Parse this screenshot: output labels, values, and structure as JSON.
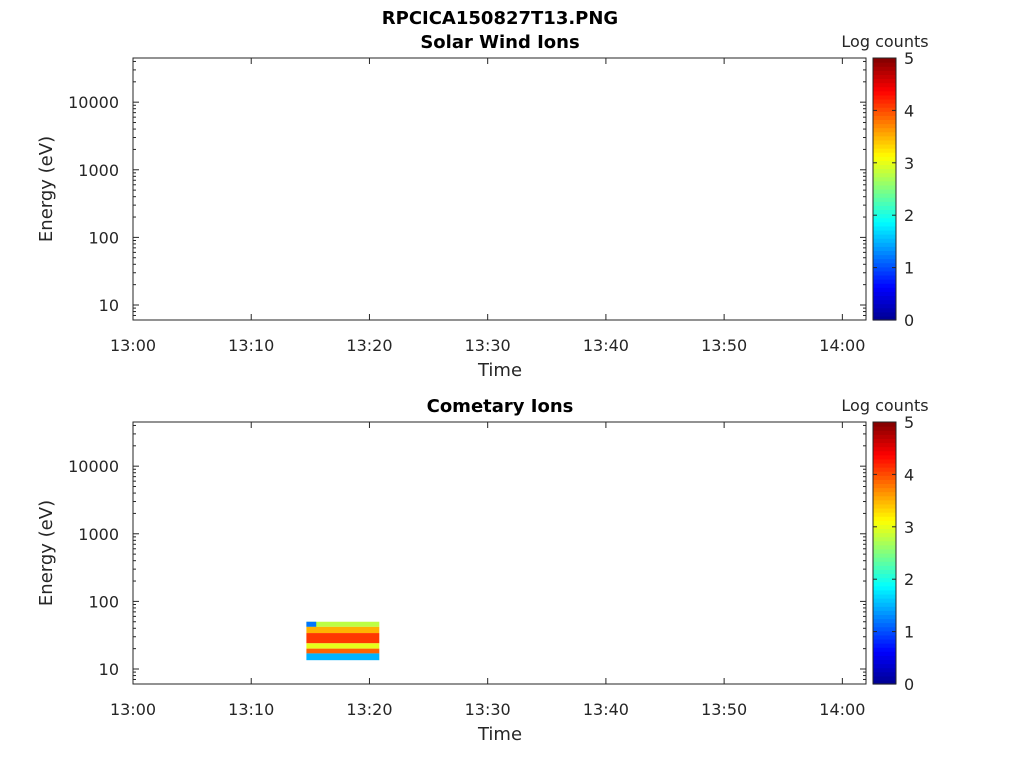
{
  "figure_title": "RPCICA150827T13.PNG",
  "colors": {
    "colormap": [
      "#00008f",
      "#0000ff",
      "#0080ff",
      "#00ffff",
      "#80ff80",
      "#ffff00",
      "#ff8000",
      "#ff0000",
      "#800000"
    ],
    "axis": "#262626"
  },
  "chart_data": [
    {
      "type": "heatmap",
      "title": "Solar Wind Ions",
      "xlabel": "Time",
      "ylabel": "Energy (eV)",
      "xticks": [
        "13:00",
        "13:10",
        "13:20",
        "13:30",
        "13:40",
        "13:50",
        "14:00"
      ],
      "xlim": [
        "13:00",
        "14:02"
      ],
      "yticks": [
        "10",
        "100",
        "1000",
        "10000"
      ],
      "yscale": "log",
      "ylim": [
        6,
        45000
      ],
      "colorbar": {
        "label": "Log counts",
        "ticks": [
          "0",
          "1",
          "2",
          "3",
          "4",
          "5"
        ],
        "range": [
          0,
          5
        ]
      },
      "grid": false,
      "blocks": []
    },
    {
      "type": "heatmap",
      "title": "Cometary Ions",
      "xlabel": "Time",
      "ylabel": "Energy (eV)",
      "xticks": [
        "13:00",
        "13:10",
        "13:20",
        "13:30",
        "13:40",
        "13:50",
        "14:00"
      ],
      "xlim": [
        "13:00",
        "14:02"
      ],
      "yticks": [
        "10",
        "100",
        "1000",
        "10000"
      ],
      "yscale": "log",
      "ylim": [
        6,
        45000
      ],
      "colorbar": {
        "label": "Log counts",
        "ticks": [
          "0",
          "1",
          "2",
          "3",
          "4",
          "5"
        ],
        "range": [
          0,
          5
        ]
      },
      "grid": false,
      "blocks": [
        {
          "t0": "13:14:40",
          "t1": "13:20:50",
          "e_lo": 42,
          "e_hi": 50,
          "log_counts": 2.8
        },
        {
          "t0": "13:14:40",
          "t1": "13:15:30",
          "e_lo": 42,
          "e_hi": 50,
          "log_counts": 1.2
        },
        {
          "t0": "13:14:40",
          "t1": "13:20:50",
          "e_lo": 34,
          "e_hi": 42,
          "log_counts": 3.5
        },
        {
          "t0": "13:14:40",
          "t1": "13:20:50",
          "e_lo": 24,
          "e_hi": 34,
          "log_counts": 4.1
        },
        {
          "t0": "13:14:40",
          "t1": "13:20:50",
          "e_lo": 20,
          "e_hi": 24,
          "log_counts": 3.0
        },
        {
          "t0": "13:14:40",
          "t1": "13:20:50",
          "e_lo": 17,
          "e_hi": 20,
          "log_counts": 3.9
        },
        {
          "t0": "13:14:40",
          "t1": "13:20:50",
          "e_lo": 13.5,
          "e_hi": 17,
          "log_counts": 1.5
        }
      ]
    }
  ]
}
